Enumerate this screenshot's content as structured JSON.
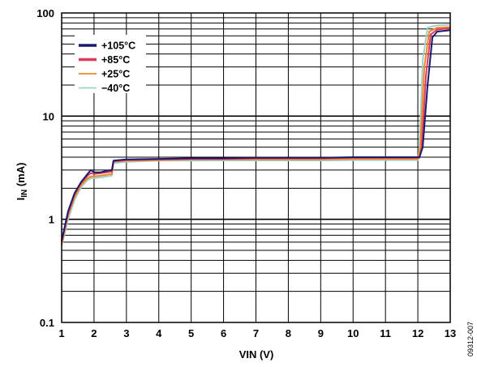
{
  "chart_data": {
    "type": "line",
    "xlabel": "VIN (V)",
    "ylabel_main": "I",
    "ylabel_sub": "IN",
    "ylabel_unit": " (mA)",
    "xlim": [
      1,
      13
    ],
    "ylim": [
      0.1,
      100
    ],
    "yscale": "log",
    "grid": true,
    "legend_position": "top-left",
    "figure_id": "09312-007",
    "x_ticks": [
      {
        "v": 1,
        "label": "1"
      },
      {
        "v": 2,
        "label": "2"
      },
      {
        "v": 3,
        "label": "3"
      },
      {
        "v": 4,
        "label": "4"
      },
      {
        "v": 5,
        "label": "5"
      },
      {
        "v": 6,
        "label": "6"
      },
      {
        "v": 7,
        "label": "7"
      },
      {
        "v": 8,
        "label": "8"
      },
      {
        "v": 9,
        "label": "9"
      },
      {
        "v": 10,
        "label": "10"
      },
      {
        "v": 11,
        "label": "11"
      },
      {
        "v": 12,
        "label": "12"
      },
      {
        "v": 13,
        "label": "13"
      }
    ],
    "y_ticks": [
      {
        "v": 0.1,
        "label": "0.1"
      },
      {
        "v": 1,
        "label": "1"
      },
      {
        "v": 10,
        "label": "10"
      },
      {
        "v": 100,
        "label": "100"
      }
    ],
    "series": [
      {
        "name": "+105°C",
        "color": "#1a1a6e",
        "points": [
          [
            1,
            0.62
          ],
          [
            1.2,
            1.2
          ],
          [
            1.4,
            1.8
          ],
          [
            1.6,
            2.3
          ],
          [
            1.8,
            2.75
          ],
          [
            1.9,
            3.0
          ],
          [
            2.0,
            2.85
          ],
          [
            2.2,
            2.85
          ],
          [
            2.4,
            2.95
          ],
          [
            2.55,
            3.0
          ],
          [
            2.6,
            3.7
          ],
          [
            3.0,
            3.8
          ],
          [
            4,
            3.85
          ],
          [
            5,
            3.9
          ],
          [
            6,
            3.9
          ],
          [
            7,
            3.95
          ],
          [
            8,
            3.95
          ],
          [
            9,
            3.95
          ],
          [
            10,
            4.0
          ],
          [
            11,
            4.0
          ],
          [
            12.05,
            4.0
          ],
          [
            12.15,
            5
          ],
          [
            12.3,
            20
          ],
          [
            12.45,
            58
          ],
          [
            12.6,
            66
          ],
          [
            13,
            68
          ]
        ]
      },
      {
        "name": "+85°C",
        "color": "#e03a5a",
        "points": [
          [
            1,
            0.6
          ],
          [
            1.2,
            1.15
          ],
          [
            1.4,
            1.75
          ],
          [
            1.6,
            2.25
          ],
          [
            1.8,
            2.65
          ],
          [
            1.9,
            2.8
          ],
          [
            2.0,
            2.75
          ],
          [
            2.2,
            2.8
          ],
          [
            2.4,
            2.85
          ],
          [
            2.55,
            2.9
          ],
          [
            2.6,
            3.65
          ],
          [
            3.0,
            3.75
          ],
          [
            4,
            3.8
          ],
          [
            5,
            3.85
          ],
          [
            6,
            3.85
          ],
          [
            7,
            3.9
          ],
          [
            8,
            3.9
          ],
          [
            9,
            3.9
          ],
          [
            10,
            3.95
          ],
          [
            11,
            3.95
          ],
          [
            12.05,
            3.95
          ],
          [
            12.12,
            5
          ],
          [
            12.25,
            25
          ],
          [
            12.4,
            62
          ],
          [
            12.6,
            69
          ],
          [
            13,
            71
          ]
        ]
      },
      {
        "name": "+25°C",
        "color": "#f0862a",
        "points": [
          [
            1,
            0.58
          ],
          [
            1.2,
            1.1
          ],
          [
            1.4,
            1.65
          ],
          [
            1.6,
            2.15
          ],
          [
            1.8,
            2.5
          ],
          [
            1.9,
            2.6
          ],
          [
            2.0,
            2.6
          ],
          [
            2.2,
            2.65
          ],
          [
            2.4,
            2.7
          ],
          [
            2.55,
            2.75
          ],
          [
            2.6,
            3.6
          ],
          [
            3.0,
            3.7
          ],
          [
            4,
            3.75
          ],
          [
            5,
            3.8
          ],
          [
            6,
            3.8
          ],
          [
            7,
            3.8
          ],
          [
            8,
            3.8
          ],
          [
            9,
            3.8
          ],
          [
            10,
            3.85
          ],
          [
            11,
            3.85
          ],
          [
            12.0,
            3.85
          ],
          [
            12.08,
            5
          ],
          [
            12.2,
            30
          ],
          [
            12.35,
            66
          ],
          [
            12.6,
            72
          ],
          [
            13,
            73
          ]
        ]
      },
      {
        "name": "−40°C",
        "color": "#9fd0c8",
        "points": [
          [
            1,
            0.55
          ],
          [
            1.2,
            1.0
          ],
          [
            1.4,
            1.55
          ],
          [
            1.6,
            2.05
          ],
          [
            1.8,
            2.4
          ],
          [
            1.9,
            2.5
          ],
          [
            2.0,
            2.5
          ],
          [
            2.2,
            2.55
          ],
          [
            2.4,
            2.6
          ],
          [
            2.55,
            2.65
          ],
          [
            2.6,
            3.5
          ],
          [
            3.0,
            3.6
          ],
          [
            4,
            3.7
          ],
          [
            5,
            3.7
          ],
          [
            6,
            3.72
          ],
          [
            7,
            3.72
          ],
          [
            8,
            3.72
          ],
          [
            9,
            3.72
          ],
          [
            10,
            3.75
          ],
          [
            11,
            3.75
          ],
          [
            12.0,
            3.75
          ],
          [
            12.05,
            5
          ],
          [
            12.15,
            35
          ],
          [
            12.3,
            72
          ],
          [
            12.6,
            76
          ],
          [
            13,
            77
          ]
        ]
      }
    ]
  }
}
